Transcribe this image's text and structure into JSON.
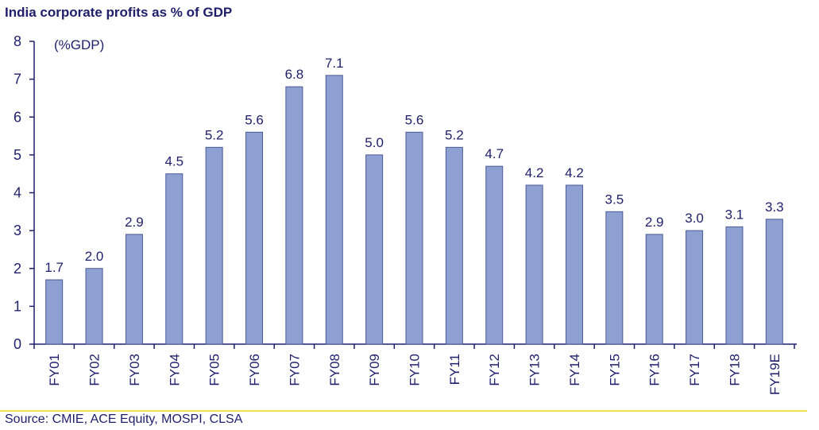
{
  "chart_data": {
    "type": "bar",
    "title": "India corporate profits as % of GDP",
    "unit_label": "(%GDP)",
    "xlabel": "",
    "ylabel": "",
    "ylim": [
      0,
      8
    ],
    "yticks": [
      0,
      1,
      2,
      3,
      4,
      5,
      6,
      7,
      8
    ],
    "categories": [
      "FY01",
      "FY02",
      "FY03",
      "FY04",
      "FY05",
      "FY06",
      "FY07",
      "FY08",
      "FY09",
      "FY10",
      "FY11",
      "FY12",
      "FY13",
      "FY14",
      "FY15",
      "FY16",
      "FY17",
      "FY18",
      "FY19E"
    ],
    "values": [
      1.7,
      2.0,
      2.9,
      4.5,
      5.2,
      5.6,
      6.8,
      7.1,
      5.0,
      5.6,
      5.2,
      4.7,
      4.2,
      4.2,
      3.5,
      2.9,
      3.0,
      3.1,
      3.3
    ],
    "data_labels": [
      "1.7",
      "2.0",
      "2.9",
      "4.5",
      "5.2",
      "5.6",
      "6.8",
      "7.1",
      "5.0",
      "5.6",
      "5.2",
      "4.7",
      "4.2",
      "4.2",
      "3.5",
      "2.9",
      "3.0",
      "3.1",
      "3.3"
    ],
    "grid": false,
    "legend": "none",
    "source": "Source: CMIE, ACE Equity, MOSPI, CLSA"
  },
  "colors": {
    "bar_fill": "#8ea0d2",
    "bar_stroke": "#4a5a94",
    "text": "#1f1f6b",
    "axis": "#1f1f6b",
    "footer_rule": "#f2e04a"
  }
}
